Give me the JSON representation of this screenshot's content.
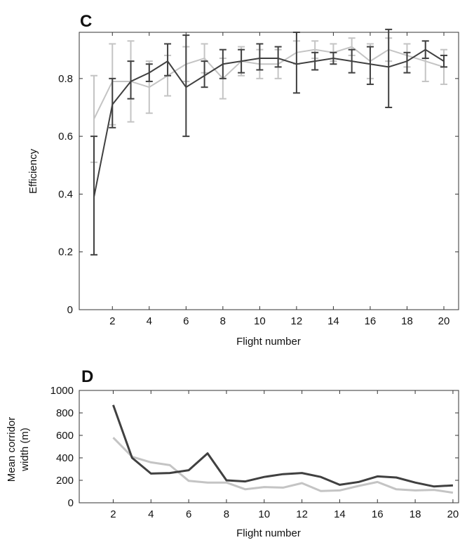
{
  "chart_data": [
    {
      "panel": "C",
      "type": "line",
      "xlabel": "Flight number",
      "ylabel": "Efficiency",
      "xlim": [
        0.2,
        20.8
      ],
      "ylim": [
        0,
        0.96
      ],
      "xticks": [
        "2",
        "4",
        "6",
        "8",
        "10",
        "12",
        "14",
        "16",
        "18",
        "20"
      ],
      "yticks": [
        "0",
        "0.2",
        "0.4",
        "0.6",
        "0.8"
      ],
      "x": [
        1,
        2,
        3,
        4,
        5,
        6,
        7,
        8,
        9,
        10,
        11,
        12,
        13,
        14,
        15,
        16,
        17,
        18,
        19,
        20
      ],
      "series": [
        {
          "color": "#c4c4c4",
          "values": [
            0.66,
            0.79,
            0.79,
            0.77,
            0.81,
            0.85,
            0.87,
            0.8,
            0.86,
            0.85,
            0.85,
            0.89,
            0.9,
            0.89,
            0.91,
            0.86,
            0.9,
            0.88,
            0.86,
            0.84
          ],
          "err_low": [
            0.51,
            0.64,
            0.65,
            0.68,
            0.74,
            0.79,
            0.82,
            0.73,
            0.81,
            0.8,
            0.8,
            0.85,
            0.87,
            0.86,
            0.88,
            0.8,
            0.86,
            0.84,
            0.79,
            0.78
          ],
          "err_high": [
            0.81,
            0.92,
            0.93,
            0.86,
            0.88,
            0.91,
            0.92,
            0.87,
            0.91,
            0.9,
            0.9,
            0.93,
            0.93,
            0.92,
            0.94,
            0.92,
            0.94,
            0.92,
            0.93,
            0.9
          ]
        },
        {
          "color": "#404040",
          "values": [
            0.39,
            0.71,
            0.79,
            0.82,
            0.86,
            0.77,
            0.81,
            0.85,
            0.86,
            0.87,
            0.87,
            0.85,
            0.86,
            0.87,
            0.86,
            0.85,
            0.84,
            0.86,
            0.9,
            0.86
          ],
          "err_low": [
            0.19,
            0.63,
            0.73,
            0.79,
            0.81,
            0.6,
            0.77,
            0.8,
            0.82,
            0.83,
            0.84,
            0.75,
            0.83,
            0.85,
            0.82,
            0.78,
            0.7,
            0.82,
            0.87,
            0.84
          ],
          "err_high": [
            0.6,
            0.8,
            0.86,
            0.85,
            0.92,
            0.95,
            0.86,
            0.9,
            0.9,
            0.92,
            0.91,
            0.96,
            0.89,
            0.89,
            0.9,
            0.91,
            0.97,
            0.89,
            0.93,
            0.88
          ]
        }
      ]
    },
    {
      "panel": "D",
      "type": "line",
      "xlabel": "Flight number",
      "ylabel_line1": "Mean corridor",
      "ylabel_line2": "width (m)",
      "xlim": [
        0.2,
        20.3
      ],
      "ylim": [
        0,
        1000
      ],
      "xticks": [
        "2",
        "4",
        "6",
        "8",
        "10",
        "12",
        "14",
        "16",
        "18",
        "20"
      ],
      "yticks": [
        "0",
        "200",
        "400",
        "600",
        "800",
        "1000"
      ],
      "x": [
        2,
        3,
        4,
        5,
        6,
        7,
        8,
        9,
        10,
        11,
        12,
        13,
        14,
        15,
        16,
        17,
        18,
        19,
        20
      ],
      "series": [
        {
          "color": "#c4c4c4",
          "values": [
            580,
            410,
            360,
            335,
            195,
            180,
            180,
            120,
            140,
            135,
            175,
            105,
            110,
            150,
            185,
            120,
            110,
            115,
            90
          ]
        },
        {
          "color": "#404040",
          "values": [
            870,
            400,
            260,
            265,
            290,
            440,
            200,
            190,
            230,
            255,
            265,
            230,
            160,
            185,
            235,
            225,
            180,
            145,
            155
          ]
        }
      ]
    }
  ]
}
